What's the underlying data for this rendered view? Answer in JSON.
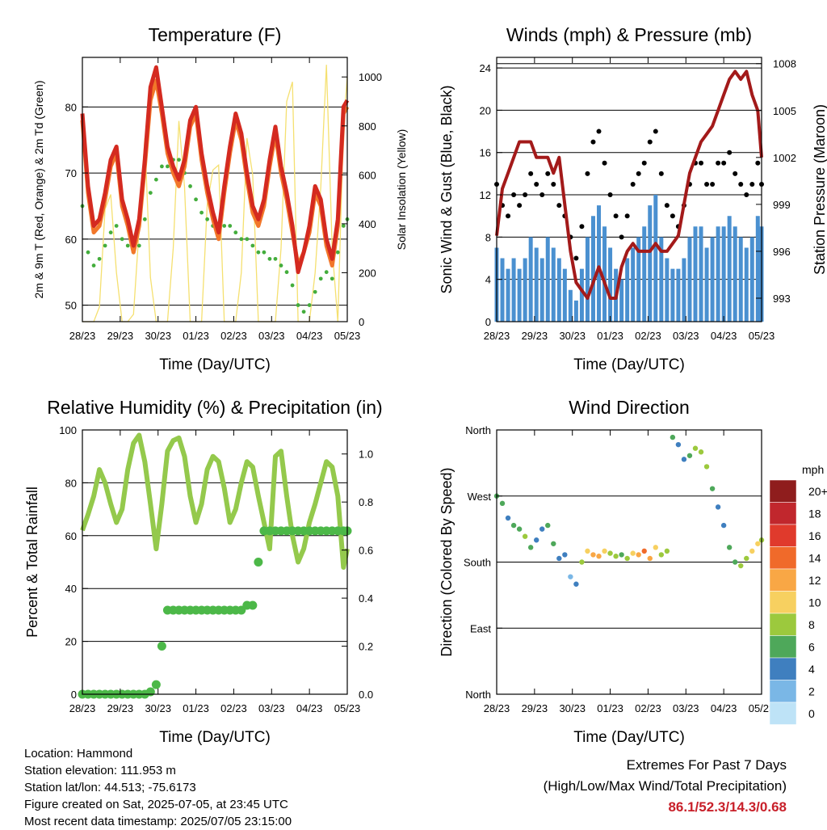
{
  "x_ticks": [
    "28/23",
    "29/23",
    "30/23",
    "01/23",
    "02/23",
    "03/23",
    "04/23",
    "05/23"
  ],
  "colors": {
    "temp_red": "#d42a20",
    "temp_orange": "#f2772a",
    "dewpoint": "#43ad3c",
    "solar": "#f5e070",
    "wind_blue": "#4a90d0",
    "gust_black": "#000000",
    "pressure": "#a31a1a",
    "rh": "#94c94c",
    "precip": "#4cb848"
  },
  "chart_data": [
    {
      "id": "temperature",
      "type": "line",
      "title": "Temperature (F)",
      "xlabel": "Time (Day/UTC)",
      "ylabel": "2m & 9m T (Red, Orange) & 2m Td (Green)",
      "y2label": "Solar Insolation (Yellow)",
      "ylim": [
        47.5,
        87.5
      ],
      "yticks": [
        50,
        60,
        70,
        80
      ],
      "y2lim": [
        0,
        1080
      ],
      "y2ticks": [
        0,
        200,
        400,
        600,
        800,
        1000
      ],
      "x": [
        0,
        0.15,
        0.3,
        0.45,
        0.6,
        0.75,
        0.9,
        1.05,
        1.2,
        1.35,
        1.5,
        1.65,
        1.8,
        1.95,
        2.1,
        2.25,
        2.4,
        2.55,
        2.7,
        2.85,
        3.0,
        3.15,
        3.3,
        3.45,
        3.6,
        3.75,
        3.9,
        4.05,
        4.2,
        4.35,
        4.5,
        4.65,
        4.8,
        4.95,
        5.1,
        5.25,
        5.4,
        5.55,
        5.7,
        5.85,
        6.0,
        6.15,
        6.3,
        6.45,
        6.6,
        6.75,
        6.9,
        7.0
      ],
      "series": [
        {
          "values": [
            79,
            68,
            62,
            63,
            67,
            72,
            74,
            66,
            63,
            59,
            63,
            72,
            83,
            86,
            80,
            74,
            71,
            69,
            72,
            78,
            80,
            73,
            68,
            64,
            61,
            68,
            74,
            79,
            76,
            70,
            65,
            63,
            66,
            72,
            77,
            71,
            67,
            62,
            55,
            58,
            62,
            68,
            66,
            60,
            57,
            63,
            80,
            81
          ]
        },
        {
          "values": [
            78,
            67,
            61,
            62,
            66,
            71,
            73,
            65,
            62,
            58,
            62,
            71,
            81,
            84,
            79,
            73,
            70,
            68,
            71,
            77,
            79,
            72,
            67,
            63,
            60,
            67,
            73,
            78,
            75,
            69,
            64,
            62,
            65,
            71,
            76,
            70,
            66,
            61,
            56,
            58,
            61,
            67,
            65,
            59,
            56,
            62,
            79,
            80
          ]
        },
        {
          "values": [
            65,
            58,
            56,
            57,
            59,
            61,
            62,
            60,
            59,
            58,
            59,
            63,
            67,
            69,
            71,
            71,
            72,
            72,
            70,
            68,
            66,
            64,
            63,
            62,
            61,
            62,
            62,
            61,
            60,
            60,
            59,
            58,
            58,
            57,
            57,
            56,
            55,
            53,
            50,
            49,
            50,
            52,
            54,
            55,
            54,
            58,
            62,
            63
          ]
        },
        {
          "values": [
            0,
            0,
            0,
            60,
            460,
            520,
            200,
            0,
            0,
            30,
            380,
            750,
            180,
            0,
            0,
            0,
            300,
            820,
            550,
            0,
            0,
            0,
            480,
            620,
            640,
            0,
            0,
            0,
            200,
            750,
            600,
            0,
            0,
            0,
            0,
            300,
            900,
            980,
            0,
            0,
            0,
            200,
            550,
            1050,
            300,
            0,
            800,
            1000
          ]
        }
      ]
    },
    {
      "id": "winds",
      "type": "scatter",
      "title": "Winds (mph) & Pressure (mb)",
      "xlabel": "Time (Day/UTC)",
      "ylabel": "Sonic Wind & Gust (Blue, Black)",
      "y2label": "Station Pressure (Maroon)",
      "ylim": [
        0,
        25
      ],
      "yticks": [
        0,
        4,
        8,
        12,
        16,
        20,
        24
      ],
      "y2lim": [
        991.5,
        1008.4
      ],
      "y2ticks": [
        993,
        996,
        999,
        1002,
        1005,
        1008
      ],
      "x": [
        0,
        0.15,
        0.3,
        0.45,
        0.6,
        0.75,
        0.9,
        1.05,
        1.2,
        1.35,
        1.5,
        1.65,
        1.8,
        1.95,
        2.1,
        2.25,
        2.4,
        2.55,
        2.7,
        2.85,
        3.0,
        3.15,
        3.3,
        3.45,
        3.6,
        3.75,
        3.9,
        4.05,
        4.2,
        4.35,
        4.5,
        4.65,
        4.8,
        4.95,
        5.1,
        5.25,
        5.4,
        5.55,
        5.7,
        5.85,
        6.0,
        6.15,
        6.3,
        6.45,
        6.6,
        6.75,
        6.9,
        7.0
      ],
      "series": [
        {
          "values": [
            7,
            6,
            5,
            6,
            5,
            6,
            8,
            7,
            6,
            8,
            7,
            6,
            5,
            3,
            2,
            5,
            8,
            10,
            11,
            9,
            7,
            5,
            4,
            6,
            7,
            8,
            9,
            11,
            12,
            8,
            6,
            5,
            5,
            6,
            8,
            9,
            9,
            7,
            8,
            9,
            9,
            10,
            9,
            8,
            7,
            8,
            10,
            9
          ]
        },
        {
          "values": [
            13,
            11,
            10,
            12,
            11,
            12,
            14,
            13,
            12,
            14,
            13,
            11,
            10,
            8,
            6,
            9,
            14,
            17,
            18,
            15,
            12,
            10,
            8,
            10,
            13,
            14,
            15,
            17,
            18,
            14,
            11,
            10,
            9,
            11,
            13,
            15,
            15,
            13,
            13,
            15,
            15,
            16,
            14,
            13,
            12,
            13,
            15,
            13
          ]
        },
        {
          "values": [
            997,
            1000,
            1001,
            1002,
            1003,
            1003,
            1003,
            1002,
            1002,
            1002,
            1001,
            1002,
            999,
            996,
            994,
            993.5,
            993,
            994,
            995,
            994,
            993,
            993,
            995,
            996,
            996.5,
            996,
            996,
            996,
            996.5,
            996,
            996,
            996.5,
            997,
            999,
            1001,
            1002,
            1003,
            1003.5,
            1004,
            1005,
            1006,
            1007,
            1007.5,
            1007,
            1007.5,
            1006,
            1005,
            1002
          ]
        }
      ]
    },
    {
      "id": "humidity",
      "type": "line",
      "title": "Relative Humidity (%) & Precipitation (in)",
      "xlabel": "Time (Day/UTC)",
      "ylabel": "Percent & Total Rainfall",
      "ylim": [
        0,
        100
      ],
      "yticks": [
        0,
        20,
        40,
        60,
        80,
        100
      ],
      "y2lim": [
        0,
        1.1
      ],
      "y2ticks": [
        "0.0",
        "0.2",
        "0.4",
        "0.6",
        "0.8",
        "1.0"
      ],
      "x": [
        0,
        0.15,
        0.3,
        0.45,
        0.6,
        0.75,
        0.9,
        1.05,
        1.2,
        1.35,
        1.5,
        1.65,
        1.8,
        1.95,
        2.1,
        2.25,
        2.4,
        2.55,
        2.7,
        2.85,
        3.0,
        3.15,
        3.3,
        3.45,
        3.6,
        3.75,
        3.9,
        4.05,
        4.2,
        4.35,
        4.5,
        4.65,
        4.8,
        4.95,
        5.1,
        5.25,
        5.4,
        5.55,
        5.7,
        5.85,
        6.0,
        6.15,
        6.3,
        6.45,
        6.6,
        6.75,
        6.9,
        7.0
      ],
      "series": [
        {
          "values": [
            62,
            68,
            75,
            85,
            80,
            72,
            65,
            70,
            85,
            95,
            98,
            88,
            72,
            55,
            72,
            92,
            96,
            97,
            90,
            75,
            65,
            72,
            85,
            90,
            88,
            78,
            65,
            70,
            80,
            88,
            86,
            75,
            65,
            55,
            90,
            92,
            75,
            60,
            50,
            55,
            65,
            72,
            80,
            88,
            86,
            75,
            48,
            55
          ]
        },
        {
          "values": [
            0,
            0,
            0,
            0,
            0,
            0,
            0,
            0,
            0,
            0,
            0,
            0,
            0.01,
            0.04,
            0.2,
            0.35,
            0.35,
            0.35,
            0.35,
            0.35,
            0.35,
            0.35,
            0.35,
            0.35,
            0.35,
            0.35,
            0.35,
            0.35,
            0.35,
            0.37,
            0.37,
            0.55,
            0.68,
            0.68,
            0.68,
            0.68,
            0.68,
            0.68,
            0.68,
            0.68,
            0.68,
            0.68,
            0.68,
            0.68,
            0.68,
            0.68,
            0.68,
            0.68
          ]
        }
      ]
    },
    {
      "id": "wind_direction",
      "type": "scatter",
      "title": "Wind Direction",
      "xlabel": "Time (Day/UTC)",
      "ylabel": "Direction (Colored By Speed)",
      "ylim": [
        0,
        360
      ],
      "ylabels": [
        "North",
        "East",
        "South",
        "West",
        "North"
      ],
      "yticks": [
        0,
        90,
        180,
        270,
        360
      ],
      "x": [
        0,
        0.15,
        0.3,
        0.45,
        0.6,
        0.75,
        0.9,
        1.05,
        1.2,
        1.35,
        1.5,
        1.65,
        1.8,
        1.95,
        2.1,
        2.25,
        2.4,
        2.55,
        2.7,
        2.85,
        3.0,
        3.15,
        3.3,
        3.45,
        3.6,
        3.75,
        3.9,
        4.05,
        4.2,
        4.35,
        4.5,
        4.65,
        4.8,
        4.95,
        5.1,
        5.25,
        5.4,
        5.55,
        5.7,
        5.85,
        6.0,
        6.15,
        6.3,
        6.45,
        6.6,
        6.75,
        6.9,
        7.0
      ],
      "series": [
        {
          "values": [
            270,
            260,
            240,
            230,
            225,
            215,
            200,
            210,
            225,
            230,
            205,
            185,
            190,
            160,
            150,
            180,
            195,
            190,
            188,
            195,
            192,
            188,
            190,
            185,
            192,
            190,
            195,
            185,
            200,
            190,
            195,
            350,
            340,
            320,
            325,
            335,
            330,
            310,
            280,
            255,
            230,
            200,
            180,
            175,
            185,
            195,
            205,
            210
          ],
          "speeds": [
            6,
            5,
            4,
            6,
            5,
            7,
            5,
            4,
            3,
            6,
            5,
            4,
            3,
            2,
            4,
            8,
            10,
            12,
            11,
            9,
            8,
            7,
            6,
            8,
            10,
            12,
            14,
            11,
            9,
            8,
            7,
            5,
            3,
            4,
            6,
            7,
            8,
            7,
            6,
            4,
            3,
            5,
            6,
            7,
            8,
            9,
            10,
            8
          ]
        }
      ],
      "legend": {
        "title": "mph",
        "labels": [
          "20+",
          "18",
          "16",
          "14",
          "12",
          "10",
          "8",
          "6",
          "4",
          "2",
          "0"
        ],
        "colors": [
          "#8f1d1d",
          "#c1272d",
          "#e03a2c",
          "#f06a2a",
          "#f9a745",
          "#f7d060",
          "#9cc93d",
          "#4ea85a",
          "#3f7fbf",
          "#7ab7e6",
          "#bee3f7"
        ]
      }
    }
  ],
  "info": {
    "location": "Location: Hammond",
    "elevation": "Station elevation: 111.953 m",
    "latlon": "Station lat/lon: 44.513; -75.6173",
    "created": "Figure created on Sat, 2025-07-05, at 23:45 UTC",
    "recent": "Most recent data timestamp: 2025/07/05 23:15:00"
  },
  "extremes": {
    "title": "Extremes For Past 7 Days",
    "subtitle": "(High/Low/Max Wind/Total Precipitation)",
    "values": "86.1/52.3/14.3/0.68"
  }
}
